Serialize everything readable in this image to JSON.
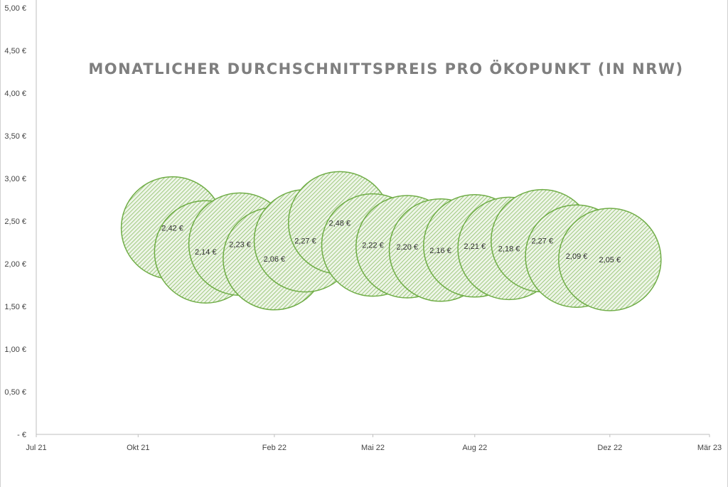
{
  "chart_data": {
    "type": "scatter",
    "title": "MONATLICHER DURCHSCHNITTSPREIS PRO ÖKOPUNKT (IN NRW)",
    "xlabel": "",
    "ylabel": "",
    "x_ticks": [
      {
        "label": "Jul 21",
        "date": "2021-07-01"
      },
      {
        "label": "Okt 21",
        "date": "2021-10-01"
      },
      {
        "label": "Feb 22",
        "date": "2022-02-01"
      },
      {
        "label": "Mai 22",
        "date": "2022-05-01"
      },
      {
        "label": "Aug 22",
        "date": "2022-08-01"
      },
      {
        "label": "Dez 22",
        "date": "2022-12-01"
      },
      {
        "label": "Mär 23",
        "date": "2023-03-01"
      }
    ],
    "y_ticks": [
      "-  €",
      "0,50 €",
      "1,00 €",
      "1,50 €",
      "2,00 €",
      "2,50 €",
      "3,00 €",
      "3,50 €",
      "4,00 €",
      "4,50 €",
      "5,00 €"
    ],
    "ylim": [
      0,
      5
    ],
    "xlim": [
      "2021-07-01",
      "2023-03-01"
    ],
    "grid": false,
    "marker_color": "#70ad47",
    "points": [
      {
        "x": "2021-11-01",
        "y": 2.42,
        "label": "2,42 €"
      },
      {
        "x": "2021-12-01",
        "y": 2.14,
        "label": "2,14 €"
      },
      {
        "x": "2022-01-01",
        "y": 2.23,
        "label": "2,23 €"
      },
      {
        "x": "2022-02-01",
        "y": 2.06,
        "label": "2,06 €"
      },
      {
        "x": "2022-03-01",
        "y": 2.27,
        "label": "2,27 €"
      },
      {
        "x": "2022-04-01",
        "y": 2.48,
        "label": "2,48 €"
      },
      {
        "x": "2022-05-01",
        "y": 2.22,
        "label": "2,22 €"
      },
      {
        "x": "2022-06-01",
        "y": 2.2,
        "label": "2,20 €"
      },
      {
        "x": "2022-07-01",
        "y": 2.16,
        "label": "2,16 €"
      },
      {
        "x": "2022-08-01",
        "y": 2.21,
        "label": "2,21 €"
      },
      {
        "x": "2022-09-01",
        "y": 2.18,
        "label": "2,18 €"
      },
      {
        "x": "2022-10-01",
        "y": 2.27,
        "label": "2,27 €"
      },
      {
        "x": "2022-11-01",
        "y": 2.09,
        "label": "2,09 €"
      },
      {
        "x": "2022-12-01",
        "y": 2.05,
        "label": "2,05 €"
      }
    ]
  }
}
